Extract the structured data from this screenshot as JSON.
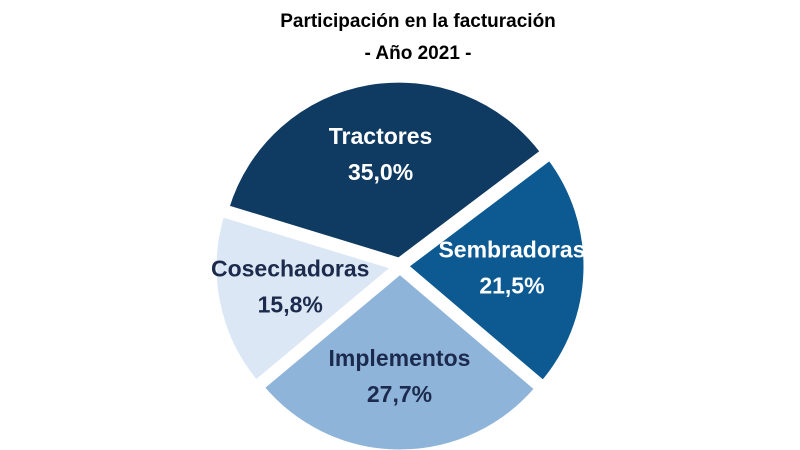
{
  "chart_data": {
    "type": "pie",
    "title": "Participación  en la facturación",
    "subtitle": "- Año  2021 -",
    "categories": [
      "Tractores",
      "Sembradoras",
      "Implementos",
      "Cosechadoras"
    ],
    "values": [
      35.0,
      21.5,
      27.7,
      15.8
    ],
    "value_labels": [
      "35,0%",
      "21,5%",
      "27,7%",
      "15,8%"
    ],
    "colors": [
      "#0f3a62",
      "#0d5a93",
      "#8fb4da",
      "#dbe7f4"
    ]
  }
}
